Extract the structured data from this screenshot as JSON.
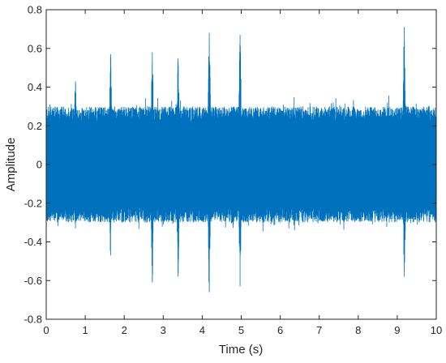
{
  "chart_data": {
    "type": "line",
    "title": "",
    "xlabel": "Time (s)",
    "ylabel": "Amplitude",
    "xlim": [
      0,
      10
    ],
    "ylim": [
      -0.8,
      0.8
    ],
    "x_ticks": [
      0,
      1,
      2,
      3,
      4,
      5,
      6,
      7,
      8,
      9,
      10
    ],
    "y_ticks": [
      -0.8,
      -0.6,
      -0.4,
      -0.2,
      0,
      0.2,
      0.4,
      0.6,
      0.8
    ],
    "x_tick_labels": [
      "0",
      "1",
      "2",
      "3",
      "4",
      "5",
      "6",
      "7",
      "8",
      "9",
      "10"
    ],
    "y_tick_labels": [
      "-0.8",
      "-0.6",
      "-0.4",
      "-0.2",
      "0",
      "0.2",
      "0.4",
      "0.6",
      "0.8"
    ],
    "grid": false,
    "line_color": "#0072BD",
    "series": [
      {
        "signal": {
          "baseline_envelope": 0.3,
          "noise_band": 0.22
        },
        "bursts": [
          {
            "t": 0.75,
            "max": 0.43,
            "min": -0.33
          },
          {
            "t": 1.65,
            "max": 0.57,
            "min": -0.47
          },
          {
            "t": 2.72,
            "max": 0.58,
            "min": -0.61
          },
          {
            "t": 3.38,
            "max": 0.55,
            "min": -0.58
          },
          {
            "t": 4.18,
            "max": 0.68,
            "min": -0.66
          },
          {
            "t": 4.97,
            "max": 0.67,
            "min": -0.63
          },
          {
            "t": 9.18,
            "max": 0.71,
            "min": -0.58
          }
        ]
      }
    ]
  }
}
